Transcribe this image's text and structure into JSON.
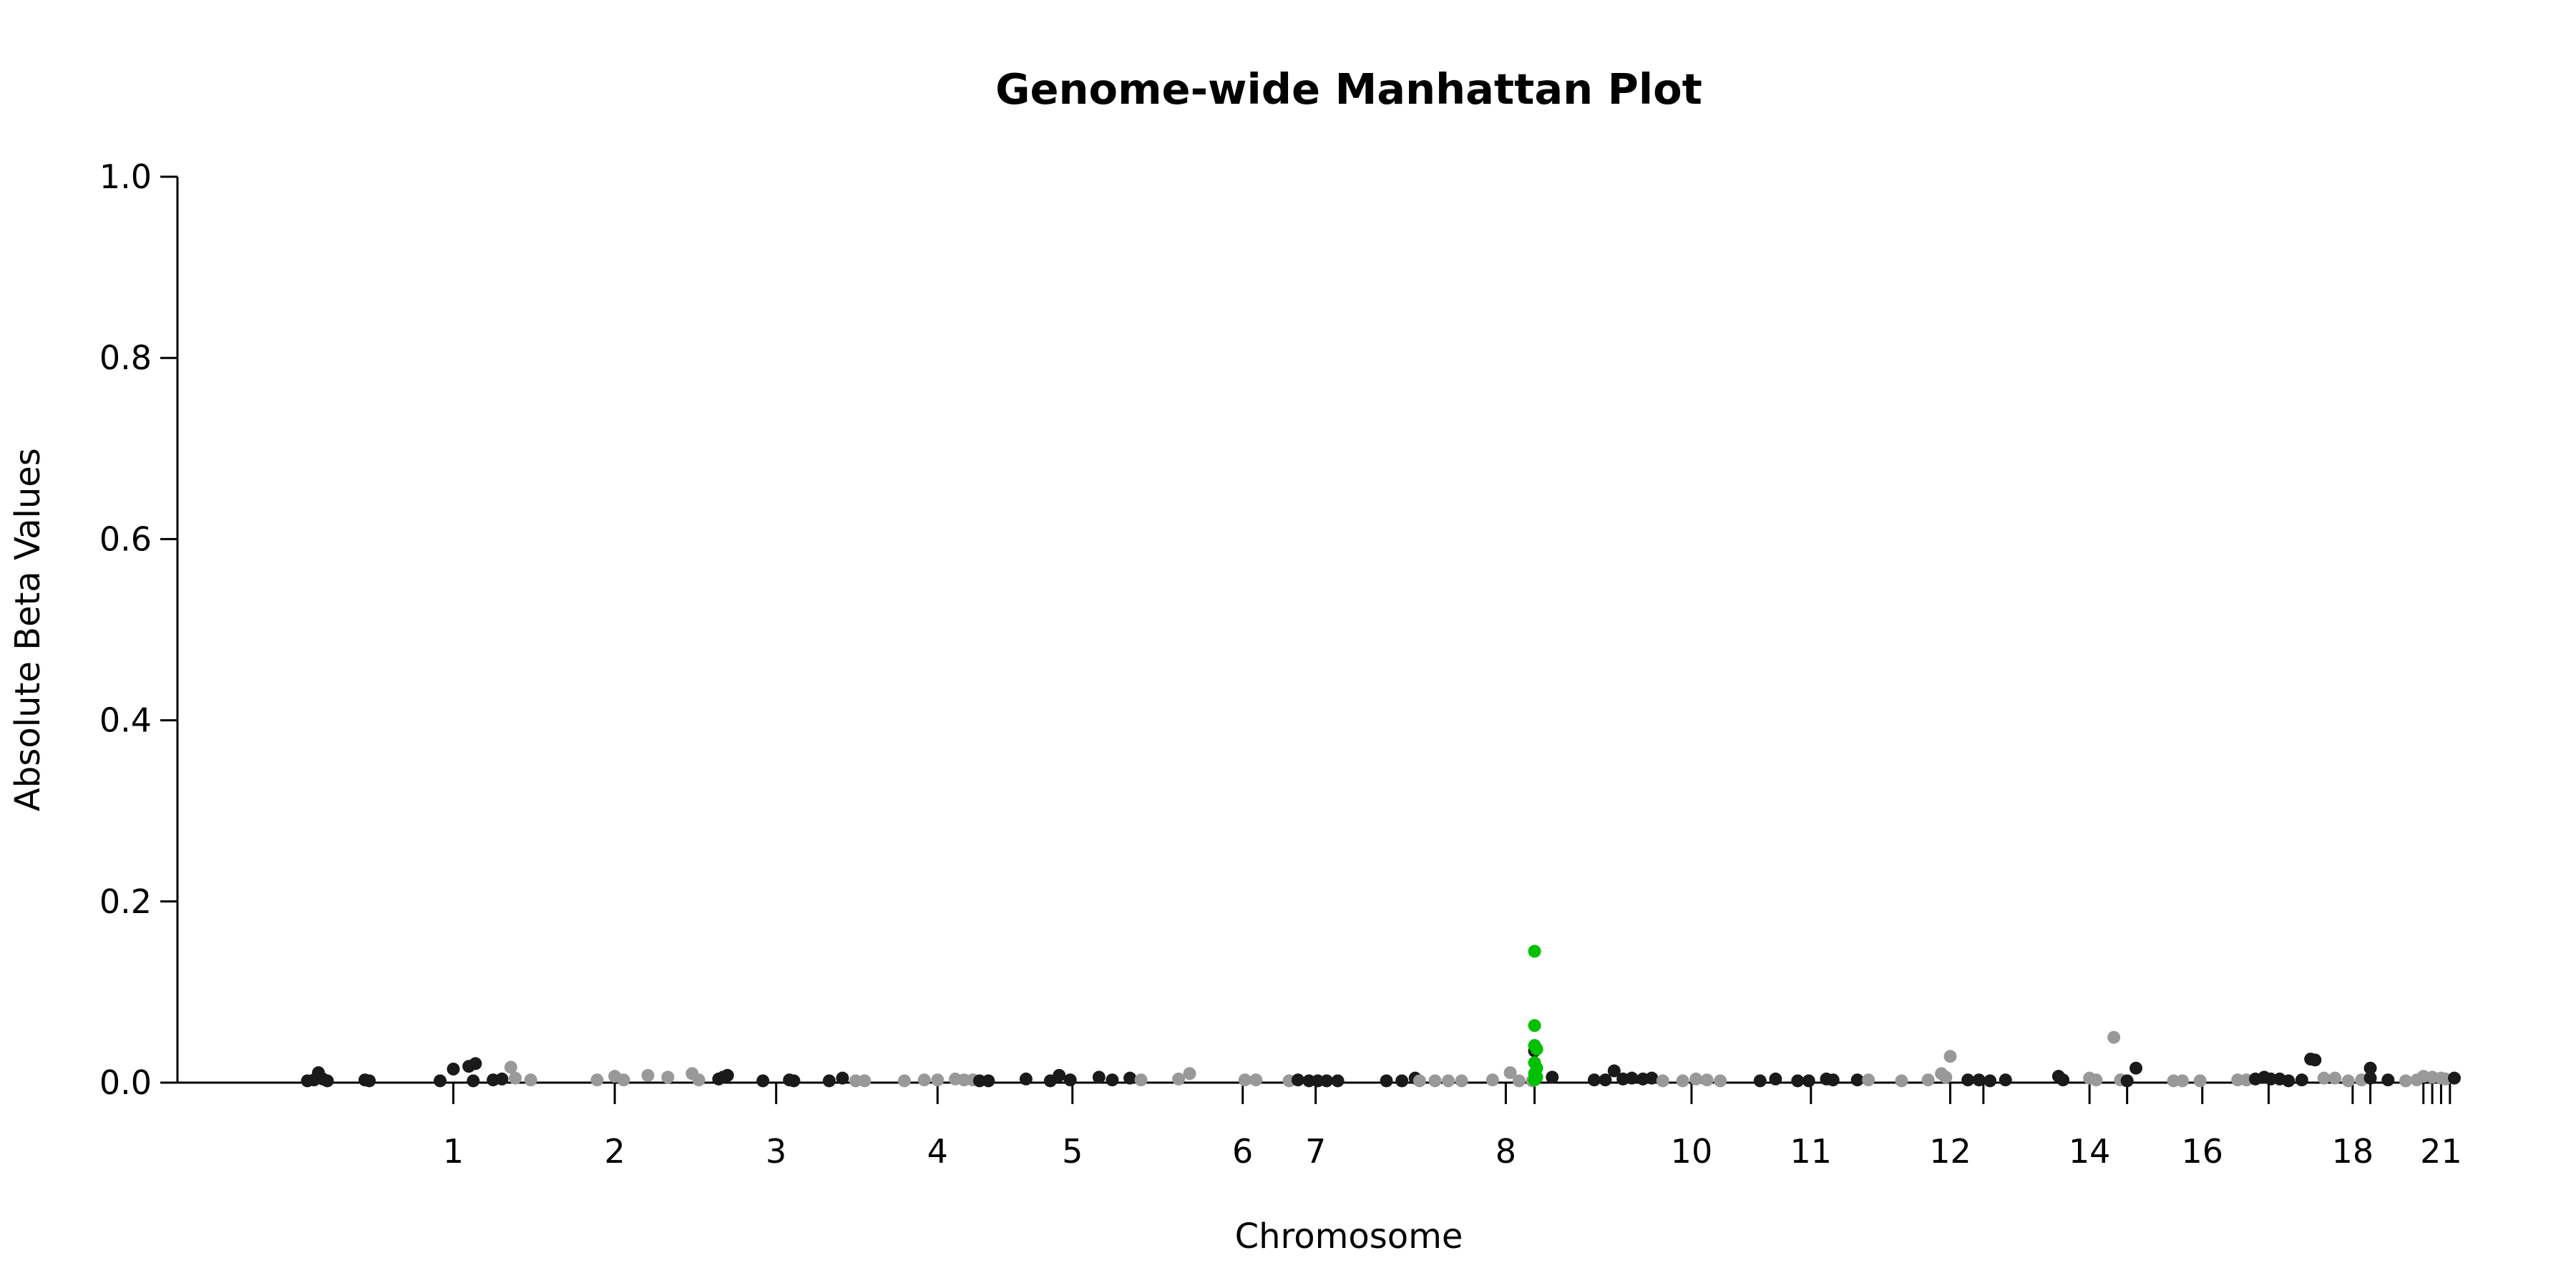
{
  "chart_data": {
    "type": "scatter",
    "title": "Genome-wide Manhattan Plot",
    "xlabel": "Chromosome",
    "ylabel": "Absolute Beta Values",
    "ylim": [
      0,
      1
    ],
    "yticks": [
      "0.0",
      "0.2",
      "0.4",
      "0.6",
      "0.8",
      "1.0"
    ],
    "grid": false,
    "legend": "none",
    "colors": {
      "odd": "#1a1a1a",
      "even": "#999999",
      "highlight": "#00c000"
    },
    "xticks": [
      {
        "label": "1",
        "x": 0.095
      },
      {
        "label": "2",
        "x": 0.168
      },
      {
        "label": "3",
        "x": 0.241
      },
      {
        "label": "4",
        "x": 0.314
      },
      {
        "label": "5",
        "x": 0.375
      },
      {
        "label": "6",
        "x": 0.452
      },
      {
        "label": "7",
        "x": 0.485
      },
      {
        "label": "8",
        "x": 0.571
      },
      {
        "label": "",
        "x": 0.584
      },
      {
        "label": "10",
        "x": 0.655
      },
      {
        "label": "11",
        "x": 0.709
      },
      {
        "label": "12",
        "x": 0.772
      },
      {
        "label": "",
        "x": 0.787
      },
      {
        "label": "14",
        "x": 0.835
      },
      {
        "label": "",
        "x": 0.852
      },
      {
        "label": "16",
        "x": 0.886
      },
      {
        "label": "",
        "x": 0.916
      },
      {
        "label": "18",
        "x": 0.954
      },
      {
        "label": "",
        "x": 0.962
      },
      {
        "label": "",
        "x": 0.986
      },
      {
        "label": "",
        "x": 0.99
      },
      {
        "label": "21",
        "x": 0.994
      },
      {
        "label": "",
        "x": 0.998
      }
    ],
    "points": [
      {
        "x": 0.029,
        "y": 0.002,
        "c": "odd"
      },
      {
        "x": 0.032,
        "y": 0.003,
        "c": "odd"
      },
      {
        "x": 0.034,
        "y": 0.011,
        "c": "odd"
      },
      {
        "x": 0.036,
        "y": 0.004,
        "c": "odd"
      },
      {
        "x": 0.038,
        "y": 0.002,
        "c": "odd"
      },
      {
        "x": 0.055,
        "y": 0.003,
        "c": "odd"
      },
      {
        "x": 0.057,
        "y": 0.002,
        "c": "odd"
      },
      {
        "x": 0.089,
        "y": 0.002,
        "c": "odd"
      },
      {
        "x": 0.095,
        "y": 0.015,
        "c": "odd"
      },
      {
        "x": 0.102,
        "y": 0.018,
        "c": "odd"
      },
      {
        "x": 0.104,
        "y": 0.002,
        "c": "odd"
      },
      {
        "x": 0.105,
        "y": 0.021,
        "c": "odd"
      },
      {
        "x": 0.113,
        "y": 0.003,
        "c": "odd"
      },
      {
        "x": 0.117,
        "y": 0.004,
        "c": "odd"
      },
      {
        "x": 0.121,
        "y": 0.017,
        "c": "even"
      },
      {
        "x": 0.123,
        "y": 0.005,
        "c": "even"
      },
      {
        "x": 0.13,
        "y": 0.003,
        "c": "even"
      },
      {
        "x": 0.16,
        "y": 0.003,
        "c": "even"
      },
      {
        "x": 0.168,
        "y": 0.007,
        "c": "even"
      },
      {
        "x": 0.172,
        "y": 0.003,
        "c": "even"
      },
      {
        "x": 0.183,
        "y": 0.008,
        "c": "even"
      },
      {
        "x": 0.192,
        "y": 0.006,
        "c": "even"
      },
      {
        "x": 0.203,
        "y": 0.01,
        "c": "even"
      },
      {
        "x": 0.206,
        "y": 0.003,
        "c": "even"
      },
      {
        "x": 0.215,
        "y": 0.004,
        "c": "odd"
      },
      {
        "x": 0.217,
        "y": 0.006,
        "c": "odd"
      },
      {
        "x": 0.219,
        "y": 0.008,
        "c": "odd"
      },
      {
        "x": 0.235,
        "y": 0.002,
        "c": "odd"
      },
      {
        "x": 0.247,
        "y": 0.003,
        "c": "odd"
      },
      {
        "x": 0.249,
        "y": 0.002,
        "c": "odd"
      },
      {
        "x": 0.265,
        "y": 0.002,
        "c": "odd"
      },
      {
        "x": 0.271,
        "y": 0.005,
        "c": "odd"
      },
      {
        "x": 0.277,
        "y": 0.002,
        "c": "even"
      },
      {
        "x": 0.281,
        "y": 0.002,
        "c": "even"
      },
      {
        "x": 0.299,
        "y": 0.002,
        "c": "even"
      },
      {
        "x": 0.308,
        "y": 0.003,
        "c": "even"
      },
      {
        "x": 0.314,
        "y": 0.003,
        "c": "even"
      },
      {
        "x": 0.322,
        "y": 0.004,
        "c": "even"
      },
      {
        "x": 0.326,
        "y": 0.003,
        "c": "even"
      },
      {
        "x": 0.33,
        "y": 0.003,
        "c": "even"
      },
      {
        "x": 0.333,
        "y": 0.002,
        "c": "odd"
      },
      {
        "x": 0.337,
        "y": 0.002,
        "c": "odd"
      },
      {
        "x": 0.354,
        "y": 0.004,
        "c": "odd"
      },
      {
        "x": 0.365,
        "y": 0.002,
        "c": "odd"
      },
      {
        "x": 0.369,
        "y": 0.008,
        "c": "odd"
      },
      {
        "x": 0.374,
        "y": 0.003,
        "c": "odd"
      },
      {
        "x": 0.387,
        "y": 0.006,
        "c": "odd"
      },
      {
        "x": 0.393,
        "y": 0.003,
        "c": "odd"
      },
      {
        "x": 0.401,
        "y": 0.005,
        "c": "odd"
      },
      {
        "x": 0.406,
        "y": 0.003,
        "c": "even"
      },
      {
        "x": 0.423,
        "y": 0.004,
        "c": "even"
      },
      {
        "x": 0.428,
        "y": 0.01,
        "c": "even"
      },
      {
        "x": 0.453,
        "y": 0.003,
        "c": "even"
      },
      {
        "x": 0.458,
        "y": 0.003,
        "c": "even"
      },
      {
        "x": 0.473,
        "y": 0.002,
        "c": "even"
      },
      {
        "x": 0.477,
        "y": 0.003,
        "c": "odd"
      },
      {
        "x": 0.482,
        "y": 0.002,
        "c": "odd"
      },
      {
        "x": 0.486,
        "y": 0.002,
        "c": "odd"
      },
      {
        "x": 0.49,
        "y": 0.002,
        "c": "odd"
      },
      {
        "x": 0.495,
        "y": 0.002,
        "c": "odd"
      },
      {
        "x": 0.517,
        "y": 0.002,
        "c": "odd"
      },
      {
        "x": 0.524,
        "y": 0.002,
        "c": "odd"
      },
      {
        "x": 0.53,
        "y": 0.005,
        "c": "odd"
      },
      {
        "x": 0.532,
        "y": 0.002,
        "c": "even"
      },
      {
        "x": 0.539,
        "y": 0.002,
        "c": "even"
      },
      {
        "x": 0.545,
        "y": 0.002,
        "c": "even"
      },
      {
        "x": 0.551,
        "y": 0.002,
        "c": "even"
      },
      {
        "x": 0.565,
        "y": 0.003,
        "c": "even"
      },
      {
        "x": 0.573,
        "y": 0.011,
        "c": "even"
      },
      {
        "x": 0.577,
        "y": 0.002,
        "c": "even"
      },
      {
        "x": 0.583,
        "y": 0.002,
        "c": "even"
      },
      {
        "x": 0.584,
        "y": 0.145,
        "c": "highlight"
      },
      {
        "x": 0.584,
        "y": 0.063,
        "c": "highlight"
      },
      {
        "x": 0.584,
        "y": 0.041,
        "c": "highlight"
      },
      {
        "x": 0.585,
        "y": 0.037,
        "c": "highlight"
      },
      {
        "x": 0.584,
        "y": 0.022,
        "c": "highlight"
      },
      {
        "x": 0.585,
        "y": 0.016,
        "c": "highlight"
      },
      {
        "x": 0.584,
        "y": 0.01,
        "c": "highlight"
      },
      {
        "x": 0.585,
        "y": 0.006,
        "c": "highlight"
      },
      {
        "x": 0.584,
        "y": 0.003,
        "c": "highlight"
      },
      {
        "x": 0.584,
        "y": 0.035,
        "c": "odd"
      },
      {
        "x": 0.592,
        "y": 0.006,
        "c": "odd"
      },
      {
        "x": 0.611,
        "y": 0.003,
        "c": "odd"
      },
      {
        "x": 0.616,
        "y": 0.003,
        "c": "odd"
      },
      {
        "x": 0.62,
        "y": 0.013,
        "c": "odd"
      },
      {
        "x": 0.624,
        "y": 0.004,
        "c": "odd"
      },
      {
        "x": 0.628,
        "y": 0.005,
        "c": "odd"
      },
      {
        "x": 0.633,
        "y": 0.004,
        "c": "odd"
      },
      {
        "x": 0.637,
        "y": 0.005,
        "c": "odd"
      },
      {
        "x": 0.642,
        "y": 0.002,
        "c": "even"
      },
      {
        "x": 0.651,
        "y": 0.002,
        "c": "even"
      },
      {
        "x": 0.657,
        "y": 0.004,
        "c": "even"
      },
      {
        "x": 0.662,
        "y": 0.003,
        "c": "even"
      },
      {
        "x": 0.668,
        "y": 0.002,
        "c": "even"
      },
      {
        "x": 0.686,
        "y": 0.002,
        "c": "odd"
      },
      {
        "x": 0.693,
        "y": 0.004,
        "c": "odd"
      },
      {
        "x": 0.703,
        "y": 0.002,
        "c": "odd"
      },
      {
        "x": 0.708,
        "y": 0.002,
        "c": "odd"
      },
      {
        "x": 0.716,
        "y": 0.004,
        "c": "odd"
      },
      {
        "x": 0.719,
        "y": 0.003,
        "c": "odd"
      },
      {
        "x": 0.73,
        "y": 0.003,
        "c": "odd"
      },
      {
        "x": 0.735,
        "y": 0.003,
        "c": "even"
      },
      {
        "x": 0.75,
        "y": 0.002,
        "c": "even"
      },
      {
        "x": 0.762,
        "y": 0.003,
        "c": "even"
      },
      {
        "x": 0.768,
        "y": 0.01,
        "c": "even"
      },
      {
        "x": 0.77,
        "y": 0.006,
        "c": "even"
      },
      {
        "x": 0.772,
        "y": 0.029,
        "c": "even"
      },
      {
        "x": 0.78,
        "y": 0.003,
        "c": "odd"
      },
      {
        "x": 0.785,
        "y": 0.003,
        "c": "odd"
      },
      {
        "x": 0.79,
        "y": 0.002,
        "c": "odd"
      },
      {
        "x": 0.797,
        "y": 0.003,
        "c": "odd"
      },
      {
        "x": 0.821,
        "y": 0.007,
        "c": "odd"
      },
      {
        "x": 0.823,
        "y": 0.003,
        "c": "odd"
      },
      {
        "x": 0.835,
        "y": 0.005,
        "c": "even"
      },
      {
        "x": 0.838,
        "y": 0.003,
        "c": "even"
      },
      {
        "x": 0.846,
        "y": 0.05,
        "c": "even"
      },
      {
        "x": 0.849,
        "y": 0.003,
        "c": "even"
      },
      {
        "x": 0.852,
        "y": 0.002,
        "c": "odd"
      },
      {
        "x": 0.856,
        "y": 0.016,
        "c": "odd"
      },
      {
        "x": 0.873,
        "y": 0.002,
        "c": "even"
      },
      {
        "x": 0.877,
        "y": 0.002,
        "c": "even"
      },
      {
        "x": 0.885,
        "y": 0.002,
        "c": "even"
      },
      {
        "x": 0.902,
        "y": 0.003,
        "c": "even"
      },
      {
        "x": 0.906,
        "y": 0.003,
        "c": "even"
      },
      {
        "x": 0.91,
        "y": 0.004,
        "c": "odd"
      },
      {
        "x": 0.914,
        "y": 0.006,
        "c": "odd"
      },
      {
        "x": 0.917,
        "y": 0.004,
        "c": "odd"
      },
      {
        "x": 0.921,
        "y": 0.004,
        "c": "odd"
      },
      {
        "x": 0.925,
        "y": 0.002,
        "c": "odd"
      },
      {
        "x": 0.931,
        "y": 0.003,
        "c": "odd"
      },
      {
        "x": 0.935,
        "y": 0.026,
        "c": "odd"
      },
      {
        "x": 0.937,
        "y": 0.025,
        "c": "odd"
      },
      {
        "x": 0.941,
        "y": 0.005,
        "c": "even"
      },
      {
        "x": 0.946,
        "y": 0.005,
        "c": "even"
      },
      {
        "x": 0.952,
        "y": 0.002,
        "c": "even"
      },
      {
        "x": 0.958,
        "y": 0.003,
        "c": "even"
      },
      {
        "x": 0.962,
        "y": 0.016,
        "c": "odd"
      },
      {
        "x": 0.962,
        "y": 0.005,
        "c": "odd"
      },
      {
        "x": 0.97,
        "y": 0.003,
        "c": "odd"
      },
      {
        "x": 0.978,
        "y": 0.002,
        "c": "even"
      },
      {
        "x": 0.983,
        "y": 0.003,
        "c": "even"
      },
      {
        "x": 0.986,
        "y": 0.007,
        "c": "even"
      },
      {
        "x": 0.99,
        "y": 0.006,
        "c": "even"
      },
      {
        "x": 0.994,
        "y": 0.005,
        "c": "even"
      },
      {
        "x": 0.996,
        "y": 0.004,
        "c": "even"
      },
      {
        "x": 1.0,
        "y": 0.005,
        "c": "odd"
      }
    ]
  }
}
